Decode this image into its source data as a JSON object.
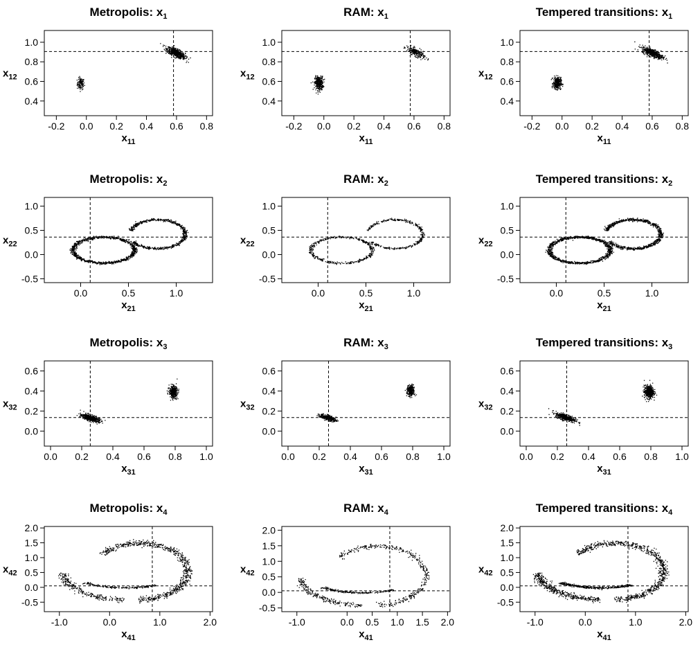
{
  "figure": {
    "method_columns": [
      "Metropolis",
      "RAM",
      "Tempered transitions"
    ]
  },
  "chart_data": [
    {
      "type": "scatter",
      "method": "Metropolis",
      "variable": "1",
      "title": "Metropolis: x",
      "title_sub": "1",
      "xlabel": "x",
      "xlabel_sub": "11",
      "ylabel": "x",
      "ylabel_sub": "12",
      "xlim": [
        -0.28,
        0.84
      ],
      "ylim": [
        0.25,
        1.12
      ],
      "xticks": [
        -0.2,
        0.0,
        0.2,
        0.4,
        0.6,
        0.8
      ],
      "xtick_labels": [
        "-0.2",
        "0.0",
        "0.2",
        "0.4",
        "0.6",
        "0.8"
      ],
      "yticks": [
        0.4,
        0.6,
        0.8,
        1.0
      ],
      "ytick_labels": [
        "0.4",
        "0.6",
        "0.8",
        "1.0"
      ],
      "vline": 0.58,
      "hline": 0.905,
      "clusters": [
        {
          "shape": "blob",
          "cx": -0.04,
          "cy": 0.58,
          "sx": 0.012,
          "sy": 0.03,
          "n": 110
        },
        {
          "shape": "blob",
          "cx": 0.595,
          "cy": 0.895,
          "sx": 0.03,
          "sy": 0.02,
          "n": 650,
          "tilt": -0.7
        }
      ]
    },
    {
      "type": "scatter",
      "method": "RAM",
      "variable": "1",
      "title": "RAM: x",
      "title_sub": "1",
      "xlabel": "x",
      "xlabel_sub": "11",
      "ylabel": "x",
      "ylabel_sub": "12",
      "xlim": [
        -0.28,
        0.84
      ],
      "ylim": [
        0.25,
        1.12
      ],
      "xticks": [
        -0.2,
        0.0,
        0.2,
        0.4,
        0.6,
        0.8
      ],
      "xtick_labels": [
        "-0.2",
        "0.0",
        "0.2",
        "0.4",
        "0.6",
        "0.8"
      ],
      "yticks": [
        0.4,
        0.6,
        0.8,
        1.0
      ],
      "ytick_labels": [
        "0.4",
        "0.6",
        "0.8",
        "1.0"
      ],
      "vline": 0.575,
      "hline": 0.905,
      "clusters": [
        {
          "shape": "blob",
          "cx": -0.035,
          "cy": 0.585,
          "sx": 0.014,
          "sy": 0.035,
          "n": 320
        },
        {
          "shape": "blob",
          "cx": 0.61,
          "cy": 0.9,
          "sx": 0.03,
          "sy": 0.02,
          "n": 220,
          "tilt": -0.7
        }
      ]
    },
    {
      "type": "scatter",
      "method": "Tempered transitions",
      "variable": "1",
      "title": "Tempered transitions: x",
      "title_sub": "1",
      "xlabel": "x",
      "xlabel_sub": "11",
      "ylabel": "x",
      "ylabel_sub": "12",
      "xlim": [
        -0.28,
        0.84
      ],
      "ylim": [
        0.25,
        1.12
      ],
      "xticks": [
        -0.2,
        0.0,
        0.2,
        0.4,
        0.6,
        0.8
      ],
      "xtick_labels": [
        "-0.2",
        "0.0",
        "0.2",
        "0.4",
        "0.6",
        "0.8"
      ],
      "yticks": [
        0.4,
        0.6,
        0.8,
        1.0
      ],
      "ytick_labels": [
        "0.4",
        "0.6",
        "0.8",
        "1.0"
      ],
      "vline": 0.58,
      "hline": 0.905,
      "clusters": [
        {
          "shape": "blob",
          "cx": -0.035,
          "cy": 0.585,
          "sx": 0.013,
          "sy": 0.03,
          "n": 330
        },
        {
          "shape": "blob",
          "cx": 0.6,
          "cy": 0.895,
          "sx": 0.035,
          "sy": 0.02,
          "n": 480,
          "tilt": -0.6
        }
      ]
    },
    {
      "type": "scatter",
      "method": "Metropolis",
      "variable": "2",
      "title": "Metropolis: x",
      "title_sub": "2",
      "xlabel": "x",
      "xlabel_sub": "21",
      "ylabel": "x",
      "ylabel_sub": "22",
      "xlim": [
        -0.38,
        1.38
      ],
      "ylim": [
        -0.58,
        1.18
      ],
      "xticks": [
        0.0,
        0.5,
        1.0
      ],
      "xtick_labels": [
        "0.0",
        "0.5",
        "1.0"
      ],
      "yticks": [
        -0.5,
        0.0,
        0.5,
        1.0
      ],
      "ytick_labels": [
        "-0.5",
        "0.0",
        "0.5",
        "1.0"
      ],
      "vline": 0.1,
      "hline": 0.36,
      "clusters": [
        {
          "shape": "ring",
          "cx": 0.24,
          "cy": 0.1,
          "rx": 0.32,
          "ry": 0.27,
          "width": 0.045,
          "n": 950
        },
        {
          "shape": "ring",
          "cx": 0.8,
          "cy": 0.43,
          "rx": 0.29,
          "ry": 0.3,
          "width": 0.04,
          "n": 650,
          "arc": [
            -2.6,
            2.9
          ]
        }
      ]
    },
    {
      "type": "scatter",
      "method": "RAM",
      "variable": "2",
      "title": "RAM: x",
      "title_sub": "2",
      "xlabel": "x",
      "xlabel_sub": "21",
      "ylabel": "x",
      "ylabel_sub": "22",
      "xlim": [
        -0.38,
        1.38
      ],
      "ylim": [
        -0.58,
        1.18
      ],
      "xticks": [
        0.0,
        0.5,
        1.0
      ],
      "xtick_labels": [
        "0.0",
        "0.5",
        "1.0"
      ],
      "yticks": [
        -0.5,
        0.0,
        0.5,
        1.0
      ],
      "ytick_labels": [
        "-0.5",
        "0.0",
        "0.5",
        "1.0"
      ],
      "vline": 0.1,
      "hline": 0.36,
      "clusters": [
        {
          "shape": "ring",
          "cx": 0.24,
          "cy": 0.1,
          "rx": 0.32,
          "ry": 0.27,
          "width": 0.04,
          "n": 420
        },
        {
          "shape": "ring",
          "cx": 0.8,
          "cy": 0.43,
          "rx": 0.29,
          "ry": 0.3,
          "width": 0.035,
          "n": 360,
          "arc": [
            -2.6,
            2.9
          ]
        }
      ]
    },
    {
      "type": "scatter",
      "method": "Tempered transitions",
      "variable": "2",
      "title": "Tempered transitions: x",
      "title_sub": "2",
      "xlabel": "x",
      "xlabel_sub": "21",
      "ylabel": "x",
      "ylabel_sub": "22",
      "xlim": [
        -0.38,
        1.38
      ],
      "ylim": [
        -0.58,
        1.18
      ],
      "xticks": [
        0.0,
        0.5,
        1.0
      ],
      "xtick_labels": [
        "0.0",
        "0.5",
        "1.0"
      ],
      "yticks": [
        -0.5,
        0.0,
        0.5,
        1.0
      ],
      "ytick_labels": [
        "-0.5",
        "0.0",
        "0.5",
        "1.0"
      ],
      "vline": 0.1,
      "hline": 0.36,
      "clusters": [
        {
          "shape": "ring",
          "cx": 0.24,
          "cy": 0.1,
          "rx": 0.32,
          "ry": 0.27,
          "width": 0.045,
          "n": 1000
        },
        {
          "shape": "ring",
          "cx": 0.8,
          "cy": 0.43,
          "rx": 0.29,
          "ry": 0.3,
          "width": 0.045,
          "n": 800,
          "arc": [
            -2.6,
            2.9
          ]
        }
      ]
    },
    {
      "type": "scatter",
      "method": "Metropolis",
      "variable": "3",
      "title": "Metropolis: x",
      "title_sub": "3",
      "xlabel": "x",
      "xlabel_sub": "31",
      "ylabel": "x",
      "ylabel_sub": "32",
      "xlim": [
        -0.04,
        1.04
      ],
      "ylim": [
        -0.15,
        0.7
      ],
      "xticks": [
        0.0,
        0.2,
        0.4,
        0.6,
        0.8,
        1.0
      ],
      "xtick_labels": [
        "0.0",
        "0.2",
        "0.4",
        "0.6",
        "0.8",
        "1.0"
      ],
      "yticks": [
        0.0,
        0.2,
        0.4,
        0.6
      ],
      "ytick_labels": [
        "0.0",
        "0.2",
        "0.4",
        "0.6"
      ],
      "vline": 0.255,
      "hline": 0.135,
      "clusters": [
        {
          "shape": "blob",
          "cx": 0.255,
          "cy": 0.135,
          "sx": 0.028,
          "sy": 0.015,
          "n": 520,
          "tilt": -0.45
        },
        {
          "shape": "blob",
          "cx": 0.785,
          "cy": 0.395,
          "sx": 0.013,
          "sy": 0.03,
          "n": 380
        }
      ]
    },
    {
      "type": "scatter",
      "method": "RAM",
      "variable": "3",
      "title": "RAM: x",
      "title_sub": "3",
      "xlabel": "x",
      "xlabel_sub": "31",
      "ylabel": "x",
      "ylabel_sub": "32",
      "xlim": [
        -0.04,
        1.04
      ],
      "ylim": [
        -0.15,
        0.7
      ],
      "xticks": [
        0.0,
        0.2,
        0.4,
        0.6,
        0.8,
        1.0
      ],
      "xtick_labels": [
        "0.0",
        "0.2",
        "0.4",
        "0.6",
        "0.8",
        "1.0"
      ],
      "yticks": [
        0.0,
        0.2,
        0.4,
        0.6
      ],
      "ytick_labels": [
        "0.0",
        "0.2",
        "0.4",
        "0.6"
      ],
      "vline": 0.26,
      "hline": 0.135,
      "clusters": [
        {
          "shape": "blob",
          "cx": 0.255,
          "cy": 0.135,
          "sx": 0.026,
          "sy": 0.013,
          "n": 300,
          "tilt": -0.45
        },
        {
          "shape": "blob",
          "cx": 0.785,
          "cy": 0.405,
          "sx": 0.012,
          "sy": 0.028,
          "n": 260
        }
      ]
    },
    {
      "type": "scatter",
      "method": "Tempered transitions",
      "variable": "3",
      "title": "Tempered transitions: x",
      "title_sub": "3",
      "xlabel": "x",
      "xlabel_sub": "31",
      "ylabel": "x",
      "ylabel_sub": "32",
      "xlim": [
        -0.04,
        1.04
      ],
      "ylim": [
        -0.15,
        0.7
      ],
      "xticks": [
        0.0,
        0.2,
        0.4,
        0.6,
        0.8,
        1.0
      ],
      "xtick_labels": [
        "0.0",
        "0.2",
        "0.4",
        "0.6",
        "0.8",
        "1.0"
      ],
      "yticks": [
        0.0,
        0.2,
        0.4,
        0.6
      ],
      "ytick_labels": [
        "0.0",
        "0.2",
        "0.4",
        "0.6"
      ],
      "vline": 0.26,
      "hline": 0.135,
      "clusters": [
        {
          "shape": "blob",
          "cx": 0.25,
          "cy": 0.14,
          "sx": 0.032,
          "sy": 0.016,
          "n": 420,
          "tilt": -0.5
        },
        {
          "shape": "blob",
          "cx": 0.785,
          "cy": 0.395,
          "sx": 0.015,
          "sy": 0.032,
          "n": 480
        }
      ]
    },
    {
      "type": "scatter",
      "method": "Metropolis",
      "variable": "4",
      "title": "Metropolis: x",
      "title_sub": "4",
      "xlabel": "x",
      "xlabel_sub": "41",
      "ylabel": "x",
      "ylabel_sub": "42",
      "xlim": [
        -1.3,
        2.05
      ],
      "ylim": [
        -0.82,
        2.05
      ],
      "xticks": [
        -1.0,
        0.0,
        1.0,
        2.0
      ],
      "xtick_labels": [
        "-1.0",
        "0.0",
        "1.0",
        "2.0"
      ],
      "yticks": [
        -0.5,
        0.0,
        0.5,
        1.0,
        1.5,
        2.0
      ],
      "ytick_labels": [
        "-0.5",
        "0.0",
        "0.5",
        "1.0",
        "1.5",
        "2.0"
      ],
      "vline": 0.85,
      "hline": 0.05,
      "clusters": [
        {
          "shape": "ring",
          "cx": 0.6,
          "cy": 0.55,
          "rx": 0.95,
          "ry": 0.95,
          "width": 0.05,
          "n": 700,
          "arc": [
            -1.6,
            2.5
          ]
        },
        {
          "shape": "ring",
          "cx": 0.3,
          "cy": 0.55,
          "rx": 1.25,
          "ry": 0.95,
          "width": 0.04,
          "n": 260,
          "arc": [
            3.2,
            4.7
          ]
        },
        {
          "shape": "ring",
          "cx": 0.3,
          "cy": 0.55,
          "rx": 1.1,
          "ry": 0.55,
          "width": 0.03,
          "n": 180,
          "arc": [
            3.9,
            5.3
          ]
        }
      ]
    },
    {
      "type": "scatter",
      "method": "RAM",
      "variable": "4",
      "title": "RAM: x",
      "title_sub": "4",
      "xlabel": "x",
      "xlabel_sub": "41",
      "ylabel": "x",
      "ylabel_sub": "42",
      "xlim": [
        -1.3,
        2.05
      ],
      "ylim": [
        -0.62,
        2.12
      ],
      "xticks": [
        -1.0,
        0.0,
        0.5,
        1.0,
        1.5,
        2.0
      ],
      "xtick_labels": [
        "-1.0",
        "0.0",
        "0.5",
        "1.0",
        "1.5",
        "2.0"
      ],
      "yticks": [
        -0.5,
        0.0,
        0.5,
        1.0,
        1.5,
        2.0
      ],
      "ytick_labels": [
        "-0.5",
        "0.0",
        "0.5",
        "1.0",
        "1.5",
        "2.0"
      ],
      "vline": 0.85,
      "hline": 0.05,
      "clusters": [
        {
          "shape": "ring",
          "cx": 0.6,
          "cy": 0.55,
          "rx": 0.95,
          "ry": 0.95,
          "width": 0.04,
          "n": 380,
          "arc": [
            -1.6,
            2.5
          ]
        },
        {
          "shape": "ring",
          "cx": 0.3,
          "cy": 0.55,
          "rx": 1.25,
          "ry": 0.95,
          "width": 0.035,
          "n": 220,
          "arc": [
            3.2,
            4.7
          ]
        },
        {
          "shape": "ring",
          "cx": 0.3,
          "cy": 0.55,
          "rx": 1.1,
          "ry": 0.55,
          "width": 0.03,
          "n": 200,
          "arc": [
            3.9,
            5.3
          ]
        }
      ]
    },
    {
      "type": "scatter",
      "method": "Tempered transitions",
      "variable": "4",
      "title": "Tempered transitions: x",
      "title_sub": "4",
      "xlabel": "x",
      "xlabel_sub": "41",
      "ylabel": "x",
      "ylabel_sub": "42",
      "xlim": [
        -1.3,
        2.05
      ],
      "ylim": [
        -0.82,
        2.05
      ],
      "xticks": [
        -1.0,
        0.0,
        1.0,
        2.0
      ],
      "xtick_labels": [
        "-1.0",
        "0.0",
        "1.0",
        "2.0"
      ],
      "yticks": [
        -0.5,
        0.0,
        0.5,
        1.0,
        1.5,
        2.0
      ],
      "ytick_labels": [
        "-0.5",
        "0.0",
        "0.5",
        "1.0",
        "1.5",
        "2.0"
      ],
      "vline": 0.85,
      "hline": 0.05,
      "clusters": [
        {
          "shape": "ring",
          "cx": 0.6,
          "cy": 0.55,
          "rx": 0.95,
          "ry": 0.95,
          "width": 0.05,
          "n": 750,
          "arc": [
            -1.6,
            2.5
          ]
        },
        {
          "shape": "ring",
          "cx": 0.3,
          "cy": 0.55,
          "rx": 1.25,
          "ry": 0.95,
          "width": 0.045,
          "n": 420,
          "arc": [
            3.2,
            4.7
          ]
        },
        {
          "shape": "ring",
          "cx": 0.3,
          "cy": 0.55,
          "rx": 1.1,
          "ry": 0.55,
          "width": 0.035,
          "n": 350,
          "arc": [
            3.9,
            5.3
          ]
        }
      ]
    }
  ]
}
